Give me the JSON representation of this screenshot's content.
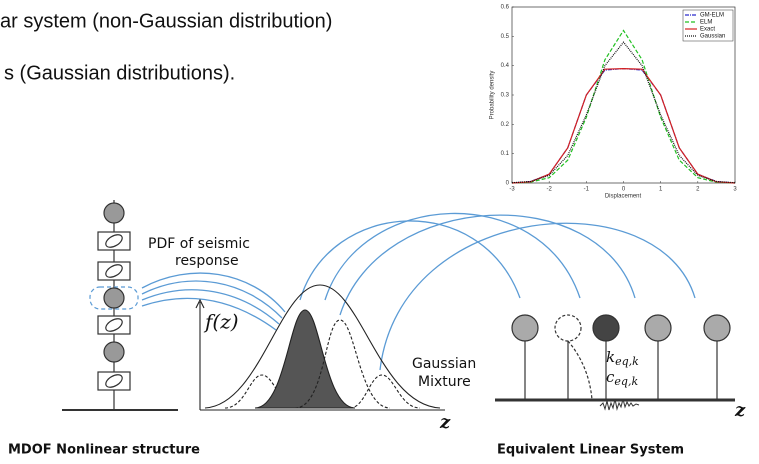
{
  "text": {
    "line1": "ar system (non-Gaussian distribution)",
    "line2": "s (Gaussian distributions)."
  },
  "chart_data": {
    "type": "line",
    "xlabel": "Displacement",
    "ylabel": "Probability density",
    "x": [
      -3,
      -2.5,
      -2,
      -1.5,
      -1,
      -0.5,
      0,
      0.5,
      1,
      1.5,
      2,
      2.5,
      3
    ],
    "xlim": [
      -3,
      3
    ],
    "xticks": [
      -3,
      -2,
      -1,
      0,
      1,
      2,
      3
    ],
    "ylim": [
      0,
      0.6
    ],
    "yticks": [
      0,
      0.1,
      0.2,
      0.3,
      0.4,
      0.5,
      0.6
    ],
    "legend": "upper right",
    "series": [
      {
        "name": "GM-ELM",
        "color": "#2a2acc",
        "dash": "4 1 1 1",
        "values": [
          0,
          0.005,
          0.03,
          0.12,
          0.3,
          0.385,
          0.39,
          0.385,
          0.3,
          0.12,
          0.03,
          0.005,
          0
        ]
      },
      {
        "name": "ELM",
        "color": "#22c022",
        "dash": "4 2",
        "values": [
          0,
          0.003,
          0.018,
          0.078,
          0.224,
          0.42,
          0.52,
          0.42,
          0.224,
          0.078,
          0.018,
          0.003,
          0
        ]
      },
      {
        "name": "Exact",
        "color": "#d42020",
        "dash": "none",
        "values": [
          0,
          0.004,
          0.03,
          0.12,
          0.3,
          0.388,
          0.39,
          0.388,
          0.3,
          0.12,
          0.03,
          0.004,
          0
        ]
      },
      {
        "name": "Gaussian",
        "color": "#111111",
        "dash": "1 1",
        "values": [
          0.001,
          0.005,
          0.026,
          0.094,
          0.232,
          0.4,
          0.48,
          0.4,
          0.232,
          0.094,
          0.026,
          0.005,
          0.001
        ]
      }
    ]
  },
  "diagram": {
    "pdf_label": [
      "PDF of seismic",
      "response"
    ],
    "f_label": "f(z)",
    "z_label": "z",
    "mixture_label": [
      "Gaussian",
      "Mixture"
    ],
    "k_symbol": "k",
    "k_subscript": "eq,k",
    "c_symbol": "c",
    "c_subscript": "eq,k",
    "left_caption": "MDOF Nonlinear structure",
    "right_caption": "Equivalent Linear System",
    "z_label_right": "z"
  }
}
